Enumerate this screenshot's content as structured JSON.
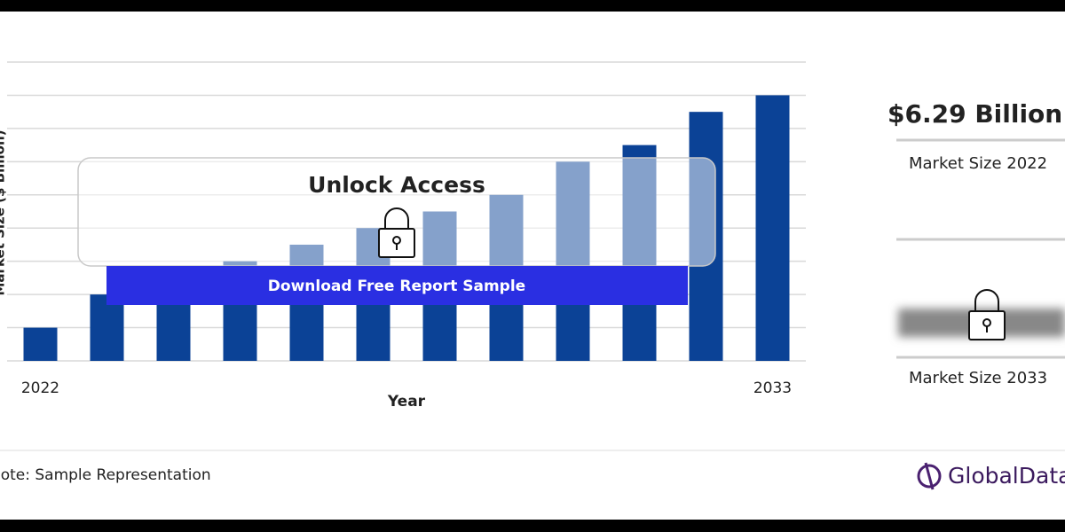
{
  "chart_data": {
    "type": "bar",
    "categories": [
      "2022",
      null,
      null,
      null,
      null,
      null,
      null,
      null,
      null,
      null,
      null,
      "2033"
    ],
    "values": [
      1,
      2,
      2.5,
      3,
      3.5,
      4,
      4.5,
      5,
      6,
      6.5,
      7.5,
      8
    ],
    "color": "#0b4296",
    "ylim": [
      0,
      9
    ],
    "yticks": [
      0,
      1,
      2,
      3,
      4,
      5,
      6,
      7,
      8,
      9
    ],
    "show_ytick_labels": false,
    "grid": true,
    "y_label": "Market Size ($ Billion)",
    "x_label": "Year"
  },
  "overlay": {
    "title": "Unlock Access",
    "button": "Download Free Report Sample"
  },
  "sidebar": {
    "value": "$6.29 Billion",
    "label_2022": "Market Size 2022",
    "label_2033": "Market Size 2033"
  },
  "footer": {
    "note": "Note: Sample Representation",
    "logo": "GlobalData"
  }
}
